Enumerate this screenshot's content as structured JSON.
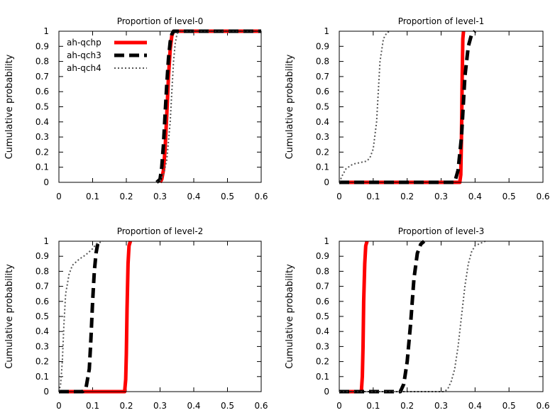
{
  "chart_data": [
    {
      "type": "line",
      "title": "Proportion of level-0",
      "xlabel": "",
      "ylabel": "Cumulative probability",
      "xlim": [
        0,
        0.6
      ],
      "ylim": [
        0,
        1
      ],
      "xticks": [
        "0",
        "0.1",
        "0.2",
        "0.3",
        "0.4",
        "0.5",
        "0.6"
      ],
      "yticks": [
        "0",
        "0.1",
        "0.2",
        "0.3",
        "0.4",
        "0.5",
        "0.6",
        "0.7",
        "0.8",
        "0.9",
        "1"
      ],
      "legend": {
        "placement": "top-left"
      },
      "series": [
        {
          "name": "ah-qchp",
          "x": [
            0.3,
            0.305,
            0.31,
            0.315,
            0.32,
            0.325,
            0.33,
            0.335,
            0.34,
            0.345,
            0.6
          ],
          "y": [
            0.0,
            0.02,
            0.08,
            0.22,
            0.45,
            0.7,
            0.88,
            0.97,
            1.0,
            1.0,
            1.0
          ]
        },
        {
          "name": "ah-qch3",
          "x": [
            0.29,
            0.3,
            0.305,
            0.31,
            0.315,
            0.32,
            0.325,
            0.33,
            0.335,
            0.34,
            0.6
          ],
          "y": [
            0.0,
            0.02,
            0.1,
            0.25,
            0.45,
            0.65,
            0.82,
            0.93,
            0.98,
            1.0,
            1.0
          ]
        },
        {
          "name": "ah-qch4",
          "x": [
            0.29,
            0.3,
            0.31,
            0.32,
            0.33,
            0.335,
            0.34,
            0.345,
            0.35,
            0.355,
            0.6
          ],
          "y": [
            0.0,
            0.01,
            0.05,
            0.15,
            0.4,
            0.6,
            0.8,
            0.92,
            0.98,
            1.0,
            1.0
          ]
        }
      ]
    },
    {
      "type": "line",
      "title": "Proportion of level-1",
      "xlabel": "",
      "ylabel": "Cumulative probability",
      "xlim": [
        0,
        0.6
      ],
      "ylim": [
        0,
        1
      ],
      "xticks": [
        "0",
        "0.1",
        "0.2",
        "0.3",
        "0.4",
        "0.5",
        "0.6"
      ],
      "yticks": [
        "0",
        "0.1",
        "0.2",
        "0.3",
        "0.4",
        "0.5",
        "0.6",
        "0.7",
        "0.8",
        "0.9",
        "1"
      ],
      "series": [
        {
          "name": "ah-qchp",
          "x": [
            0.0,
            0.355,
            0.358,
            0.36,
            0.362,
            0.364,
            0.366
          ],
          "y": [
            0.0,
            0.0,
            0.05,
            0.3,
            0.7,
            0.95,
            1.0
          ]
        },
        {
          "name": "ah-qch3",
          "x": [
            0.0,
            0.34,
            0.35,
            0.36,
            0.37,
            0.38,
            0.39,
            0.4
          ],
          "y": [
            0.0,
            0.0,
            0.08,
            0.3,
            0.7,
            0.9,
            0.98,
            1.0
          ]
        },
        {
          "name": "ah-qch4",
          "x": [
            0.0,
            0.01,
            0.02,
            0.04,
            0.06,
            0.08,
            0.09,
            0.1,
            0.11,
            0.115,
            0.12,
            0.13,
            0.14,
            0.15
          ],
          "y": [
            0.0,
            0.05,
            0.09,
            0.12,
            0.13,
            0.14,
            0.16,
            0.22,
            0.4,
            0.6,
            0.8,
            0.95,
            0.99,
            1.0
          ]
        }
      ]
    },
    {
      "type": "line",
      "title": "Proportion of level-2",
      "xlabel": "",
      "ylabel": "Cumulative probability",
      "xlim": [
        0,
        0.6
      ],
      "ylim": [
        0,
        1
      ],
      "xticks": [
        "0",
        "0.1",
        "0.2",
        "0.3",
        "0.4",
        "0.5",
        "0.6"
      ],
      "yticks": [
        "0",
        "0.1",
        "0.2",
        "0.3",
        "0.4",
        "0.5",
        "0.6",
        "0.7",
        "0.8",
        "0.9",
        "1"
      ],
      "series": [
        {
          "name": "ah-qchp",
          "x": [
            0.0,
            0.195,
            0.198,
            0.2,
            0.202,
            0.205,
            0.208,
            0.212
          ],
          "y": [
            0.0,
            0.0,
            0.08,
            0.25,
            0.55,
            0.85,
            0.97,
            1.0
          ]
        },
        {
          "name": "ah-qch3",
          "x": [
            0.0,
            0.07,
            0.08,
            0.09,
            0.095,
            0.1,
            0.105,
            0.11,
            0.115,
            0.12
          ],
          "y": [
            0.0,
            0.0,
            0.02,
            0.15,
            0.35,
            0.6,
            0.8,
            0.92,
            0.98,
            1.0
          ]
        },
        {
          "name": "ah-qch4",
          "x": [
            0.0,
            0.005,
            0.01,
            0.015,
            0.02,
            0.03,
            0.04,
            0.06,
            0.08,
            0.1,
            0.11,
            0.12,
            0.13
          ],
          "y": [
            0.0,
            0.05,
            0.2,
            0.45,
            0.65,
            0.78,
            0.84,
            0.88,
            0.91,
            0.95,
            0.98,
            0.99,
            1.0
          ]
        }
      ]
    },
    {
      "type": "line",
      "title": "Proportion of level-3",
      "xlabel": "",
      "ylabel": "Cumulative probability",
      "xlim": [
        0,
        0.6
      ],
      "ylim": [
        0,
        1
      ],
      "xticks": [
        "0",
        "0.1",
        "0.2",
        "0.3",
        "0.4",
        "0.5",
        "0.6"
      ],
      "yticks": [
        "0",
        "0.1",
        "0.2",
        "0.3",
        "0.4",
        "0.5",
        "0.6",
        "0.7",
        "0.8",
        "0.9",
        "1"
      ],
      "series": [
        {
          "name": "ah-qchp",
          "x": [
            0.0,
            0.065,
            0.068,
            0.07,
            0.072,
            0.075,
            0.078,
            0.082
          ],
          "y": [
            0.0,
            0.0,
            0.1,
            0.3,
            0.6,
            0.85,
            0.97,
            1.0
          ]
        },
        {
          "name": "ah-qch3",
          "x": [
            0.0,
            0.18,
            0.19,
            0.2,
            0.21,
            0.22,
            0.23,
            0.24,
            0.25
          ],
          "y": [
            0.0,
            0.0,
            0.05,
            0.2,
            0.45,
            0.75,
            0.92,
            0.98,
            1.0
          ]
        },
        {
          "name": "ah-qch4",
          "x": [
            0.0,
            0.31,
            0.32,
            0.33,
            0.34,
            0.35,
            0.36,
            0.37,
            0.38,
            0.39,
            0.4,
            0.42,
            0.43
          ],
          "y": [
            0.0,
            0.0,
            0.02,
            0.07,
            0.15,
            0.3,
            0.5,
            0.7,
            0.85,
            0.93,
            0.97,
            0.99,
            1.0
          ]
        }
      ]
    }
  ],
  "styles": {
    "ah-qchp": {
      "color": "#ff0000",
      "dash": "solid"
    },
    "ah-qch3": {
      "color": "#000000",
      "dash": "dashed"
    },
    "ah-qch4": {
      "color": "#555555",
      "dash": "dotted"
    }
  }
}
